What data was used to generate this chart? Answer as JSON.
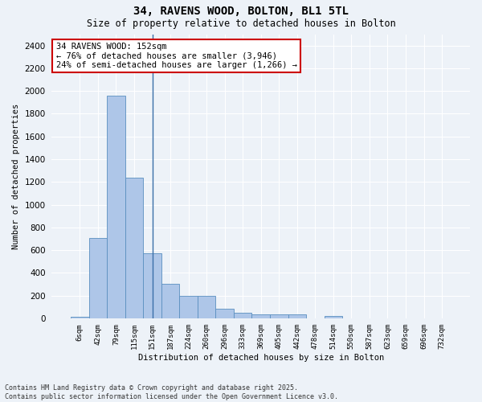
{
  "title_line1": "34, RAVENS WOOD, BOLTON, BL1 5TL",
  "title_line2": "Size of property relative to detached houses in Bolton",
  "xlabel": "Distribution of detached houses by size in Bolton",
  "ylabel": "Number of detached properties",
  "categories": [
    "6sqm",
    "42sqm",
    "79sqm",
    "115sqm",
    "151sqm",
    "187sqm",
    "224sqm",
    "260sqm",
    "296sqm",
    "333sqm",
    "369sqm",
    "405sqm",
    "442sqm",
    "478sqm",
    "514sqm",
    "550sqm",
    "587sqm",
    "623sqm",
    "659sqm",
    "696sqm",
    "732sqm"
  ],
  "values": [
    15,
    710,
    1960,
    1240,
    575,
    305,
    200,
    200,
    85,
    50,
    35,
    35,
    35,
    0,
    20,
    0,
    0,
    0,
    0,
    0,
    0
  ],
  "bar_color": "#aec6e8",
  "bar_edge_color": "#5a8fc0",
  "vline_x": 4,
  "vline_color": "#3a6fa8",
  "ylim": [
    0,
    2500
  ],
  "yticks": [
    0,
    200,
    400,
    600,
    800,
    1000,
    1200,
    1400,
    1600,
    1800,
    2000,
    2200,
    2400
  ],
  "annotation_text": "34 RAVENS WOOD: 152sqm\n← 76% of detached houses are smaller (3,946)\n24% of semi-detached houses are larger (1,266) →",
  "annotation_box_color": "#ffffff",
  "annotation_box_edge": "#cc0000",
  "footer_text": "Contains HM Land Registry data © Crown copyright and database right 2025.\nContains public sector information licensed under the Open Government Licence v3.0.",
  "bg_color": "#edf2f8",
  "plot_bg_color": "#edf2f8",
  "grid_color": "#ffffff"
}
